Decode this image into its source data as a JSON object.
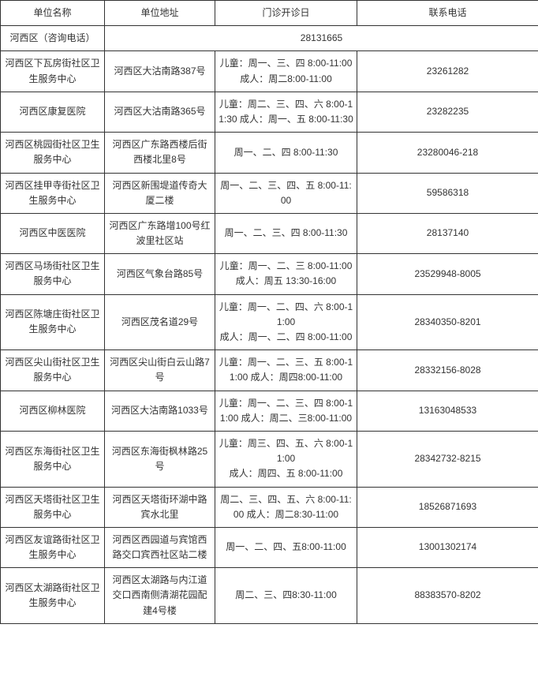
{
  "columns": [
    "单位名称",
    "单位地址",
    "门诊开诊日",
    "联系电话"
  ],
  "district_row": {
    "label": "河西区（咨询电话）",
    "phone": "28131665"
  },
  "rows": [
    {
      "name": "河西区下瓦房街社区卫生服务中心",
      "addr": "河西区大沽南路387号",
      "sched": "儿童：周一、三、四 8:00-11:00　成人：周二8:00-11:00",
      "phone": "23261282"
    },
    {
      "name": "河西区康复医院",
      "addr": "河西区大沽南路365号",
      "sched": "儿童：周二、三、四、六 8:00-11:30 成人：周一、五 8:00-11:30",
      "phone": "23282235"
    },
    {
      "name": "河西区桃园街社区卫生服务中心",
      "addr": "河西区广东路西楼后街西楼北里8号",
      "sched": "周一、二、四 8:00-11:30",
      "phone": "23280046-218"
    },
    {
      "name": "河西区挂甲寺街社区卫生服务中心",
      "addr": "河西区新围堤道传奇大厦二楼",
      "sched": "周一、二、三、四、五 8:00-11:00",
      "phone": "59586318"
    },
    {
      "name": "河西区中医医院",
      "addr": "河西区广东路增100号红波里社区站",
      "sched": "周一、二、三、四 8:00-11:30",
      "phone": "28137140"
    },
    {
      "name": "河西区马场街社区卫生服务中心",
      "addr": "河西区气象台路85号",
      "sched": "儿童：周一、二、三 8:00-11:00\n成人：周五 13:30-16:00",
      "phone": "23529948-8005"
    },
    {
      "name": "河西区陈塘庄街社区卫生服务中心",
      "addr": "河西区茂名道29号",
      "sched": "儿童：周一、二、四、六 8:00-11:00\n成人：周一、二、四 8:00-11:00",
      "phone": "28340350-8201"
    },
    {
      "name": "河西区尖山街社区卫生服务中心",
      "addr": "河西区尖山街白云山路7号",
      "sched": "儿童：周一、二、三、五 8:00-11:00 成人：周四8:00-11:00",
      "phone": "28332156-8028"
    },
    {
      "name": "河西区柳林医院",
      "addr": "河西区大沽南路1033号",
      "sched": "儿童：周一、二、三、四 8:00-11:00 成人：周二、三8:00-11:00",
      "phone": "13163048533"
    },
    {
      "name": "河西区东海街社区卫生服务中心",
      "addr": "河西区东海街枫林路25号",
      "sched": "儿童：周三、四、五、六 8:00-11:00\n成人：周四、五 8:00-11:00",
      "phone": "28342732-8215"
    },
    {
      "name": "河西区天塔街社区卫生服务中心",
      "addr": "河西区天塔街环湖中路宾水北里",
      "sched": "周二、三、四、五、六 8:00-11:00 成人：周二8:30-11:00",
      "phone": "18526871693"
    },
    {
      "name": "河西区友谊路街社区卫生服务中心",
      "addr": "河西区西园道与宾馆西路交口宾西社区站二楼",
      "sched": "周一、二、四、五8:00-11:00",
      "phone": "13001302174"
    },
    {
      "name": "河西区太湖路街社区卫生服务中心",
      "addr": "河西区太湖路与内江道交口西南侧清湖花园配建4号楼",
      "sched": "周二、三、四8:30-11:00",
      "phone": "88383570-8202"
    }
  ]
}
